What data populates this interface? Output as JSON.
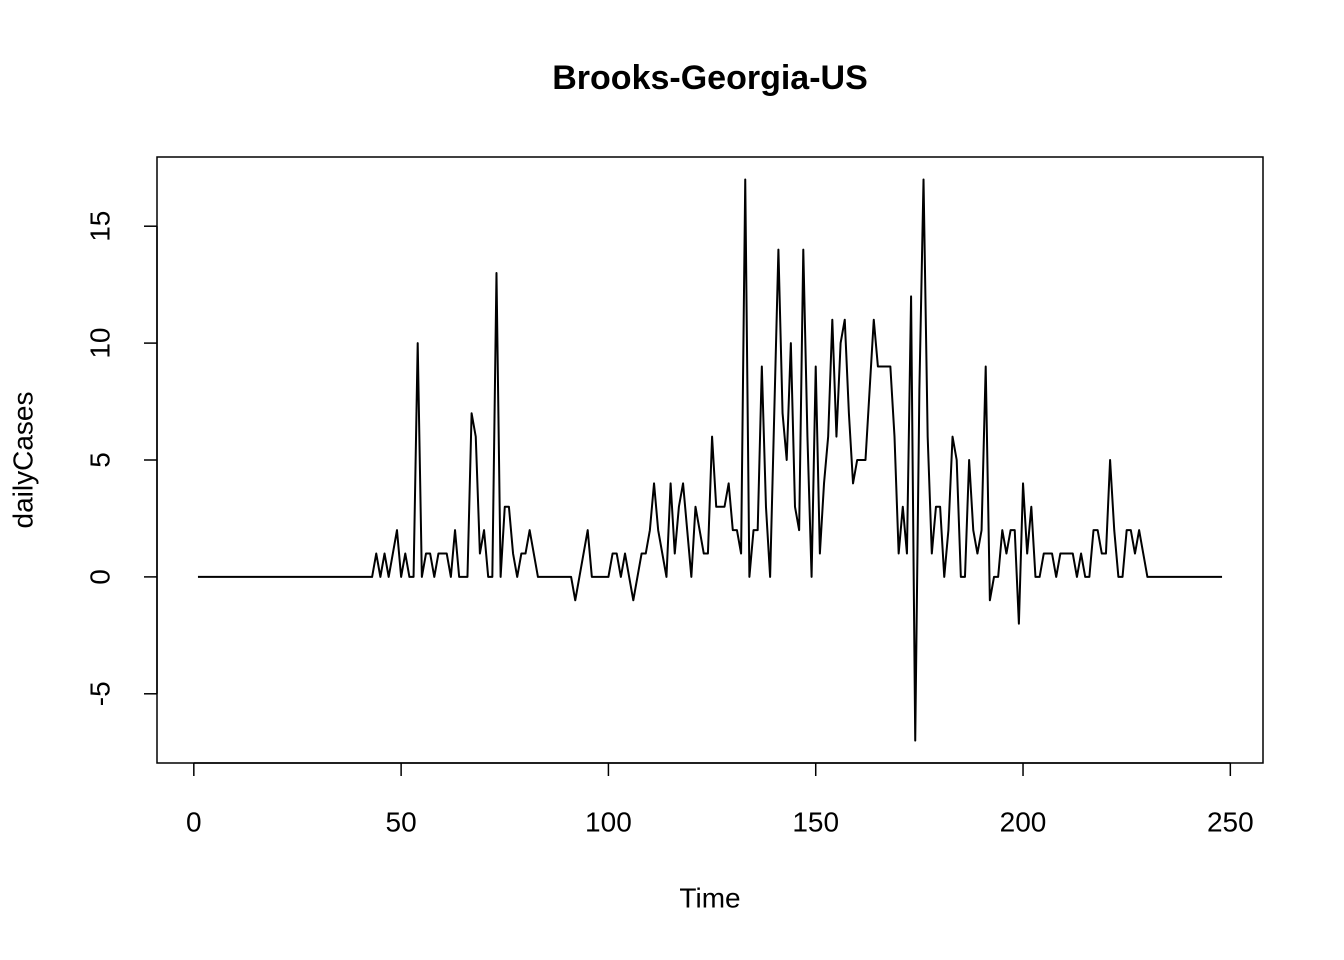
{
  "chart_data": {
    "type": "line",
    "title": "Brooks-Georgia-US",
    "x_label": "Time",
    "y_label": "dailyCases",
    "color": "#000000",
    "x": [
      1,
      2,
      3,
      4,
      5,
      6,
      7,
      8,
      9,
      10,
      11,
      12,
      13,
      14,
      15,
      16,
      17,
      18,
      19,
      20,
      21,
      22,
      23,
      24,
      25,
      26,
      27,
      28,
      29,
      30,
      31,
      32,
      33,
      34,
      35,
      36,
      37,
      38,
      39,
      40,
      41,
      42,
      43,
      44,
      45,
      46,
      47,
      48,
      49,
      50,
      51,
      52,
      53,
      54,
      55,
      56,
      57,
      58,
      59,
      60,
      61,
      62,
      63,
      64,
      65,
      66,
      67,
      68,
      69,
      70,
      71,
      72,
      73,
      74,
      75,
      76,
      77,
      78,
      79,
      80,
      81,
      82,
      83,
      84,
      85,
      86,
      87,
      88,
      89,
      90,
      91,
      92,
      93,
      94,
      95,
      96,
      97,
      98,
      99,
      100,
      101,
      102,
      103,
      104,
      105,
      106,
      107,
      108,
      109,
      110,
      111,
      112,
      113,
      114,
      115,
      116,
      117,
      118,
      119,
      120,
      121,
      122,
      123,
      124,
      125,
      126,
      127,
      128,
      129,
      130,
      131,
      132,
      133,
      134,
      135,
      136,
      137,
      138,
      139,
      140,
      141,
      142,
      143,
      144,
      145,
      146,
      147,
      148,
      149,
      150,
      151,
      152,
      153,
      154,
      155,
      156,
      157,
      158,
      159,
      160,
      161,
      162,
      163,
      164,
      165,
      166,
      167,
      168,
      169,
      170,
      171,
      172,
      173,
      174,
      175,
      176,
      177,
      178,
      179,
      180,
      181,
      182,
      183,
      184,
      185,
      186,
      187,
      188,
      189,
      190,
      191,
      192,
      193,
      194,
      195,
      196,
      197,
      198,
      199,
      200,
      201,
      202,
      203,
      204,
      205,
      206,
      207,
      208,
      209,
      210,
      211,
      212,
      213,
      214,
      215,
      216,
      217,
      218,
      219,
      220,
      221,
      222,
      223,
      224,
      225,
      226,
      227,
      228,
      229,
      230,
      231,
      232,
      233,
      234,
      235,
      236,
      237,
      238,
      239,
      240,
      241,
      242,
      243,
      244,
      245,
      246,
      247,
      248
    ],
    "values": [
      0,
      0,
      0,
      0,
      0,
      0,
      0,
      0,
      0,
      0,
      0,
      0,
      0,
      0,
      0,
      0,
      0,
      0,
      0,
      0,
      0,
      0,
      0,
      0,
      0,
      0,
      0,
      0,
      0,
      0,
      0,
      0,
      0,
      0,
      0,
      0,
      0,
      0,
      0,
      0,
      0,
      0,
      0,
      1,
      0,
      1,
      0,
      1,
      2,
      0,
      1,
      0,
      0,
      10,
      0,
      1,
      1,
      0,
      1,
      1,
      1,
      0,
      2,
      0,
      0,
      0,
      7,
      6,
      1,
      2,
      0,
      0,
      13,
      0,
      3,
      3,
      1,
      0,
      1,
      1,
      2,
      1,
      0,
      0,
      0,
      0,
      0,
      0,
      0,
      0,
      0,
      -1,
      0,
      1,
      2,
      0,
      0,
      0,
      0,
      0,
      1,
      1,
      0,
      1,
      0,
      -1,
      0,
      1,
      1,
      2,
      4,
      2,
      1,
      0,
      4,
      1,
      3,
      4,
      2,
      0,
      3,
      2,
      1,
      1,
      6,
      3,
      3,
      3,
      4,
      2,
      2,
      1,
      17,
      0,
      2,
      2,
      9,
      3,
      0,
      7,
      14,
      7,
      5,
      10,
      3,
      2,
      14,
      6,
      0,
      9,
      1,
      4,
      6,
      11,
      6,
      10,
      11,
      7,
      4,
      5,
      5,
      5,
      8,
      11,
      9,
      9,
      9,
      9,
      6,
      1,
      3,
      1,
      12,
      -7,
      8,
      17,
      6,
      1,
      3,
      3,
      0,
      2,
      6,
      5,
      0,
      0,
      5,
      2,
      1,
      2,
      9,
      -1,
      0,
      0,
      2,
      1,
      2,
      2,
      -2,
      4,
      1,
      3,
      0,
      0,
      1,
      1,
      1,
      0,
      1,
      1,
      1,
      1,
      0,
      1,
      0,
      0,
      2,
      2,
      1,
      1,
      5,
      2,
      0,
      0,
      2,
      2,
      1,
      2,
      1,
      0,
      0,
      0,
      0,
      0,
      0,
      0,
      0,
      0,
      0,
      0,
      0,
      0,
      0,
      0,
      0,
      0,
      0,
      0
    ],
    "xlim": [
      -8.88,
      257.88
    ],
    "ylim": [
      -7.96,
      17.96
    ],
    "xticks": [
      0,
      50,
      100,
      150,
      200,
      250
    ],
    "yticks": [
      -5,
      0,
      5,
      10,
      15
    ]
  }
}
